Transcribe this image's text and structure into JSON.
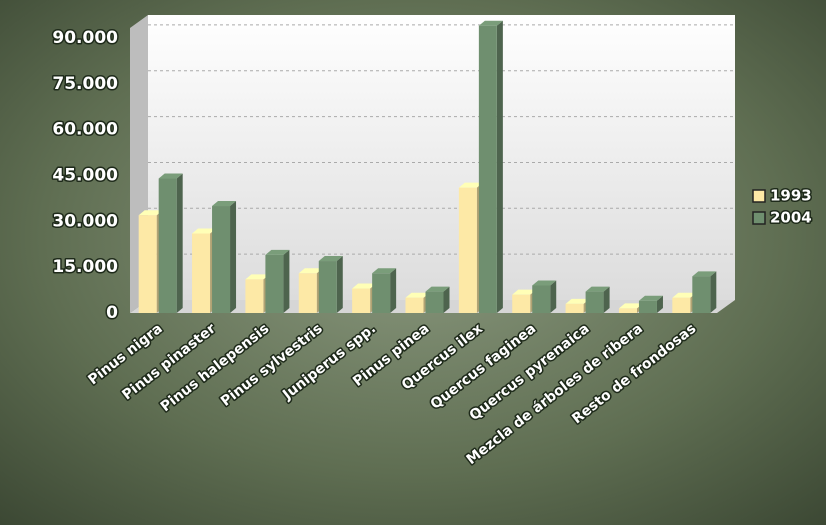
{
  "chart_data": {
    "type": "bar",
    "categories": [
      "Pinus nigra",
      "Pinus pinaster",
      "Pinus halepensis",
      "Pinus sylvestris",
      "Juniperus spp.",
      "Pinus pinea",
      "Quercus ilex",
      "Quercus faginea",
      "Quercus pyrenaica",
      "Mezcla de árboles de ribera",
      "Resto de frondosas"
    ],
    "series": [
      {
        "name": "1993",
        "color": "#fde9a6",
        "values": [
          32000,
          26000,
          11000,
          13000,
          8000,
          5000,
          41000,
          6000,
          3000,
          1500,
          5000
        ]
      },
      {
        "name": "2004",
        "color": "#6f8f6f",
        "values": [
          44000,
          35000,
          19000,
          17000,
          13000,
          7000,
          94000,
          9000,
          7000,
          4000,
          12000
        ]
      }
    ],
    "ylim": [
      0,
      97500
    ],
    "yticks": [
      0,
      {
        "value": 15000,
        "label": "15.000"
      },
      {
        "value": 30000,
        "label": "30.000"
      },
      {
        "value": 45000,
        "label": "45.000"
      },
      {
        "value": 60000,
        "label": "60.000"
      },
      {
        "value": 75000,
        "label": "75.000"
      },
      {
        "value": 90000,
        "label": "90.000"
      }
    ],
    "grid": true,
    "legend": "right"
  }
}
